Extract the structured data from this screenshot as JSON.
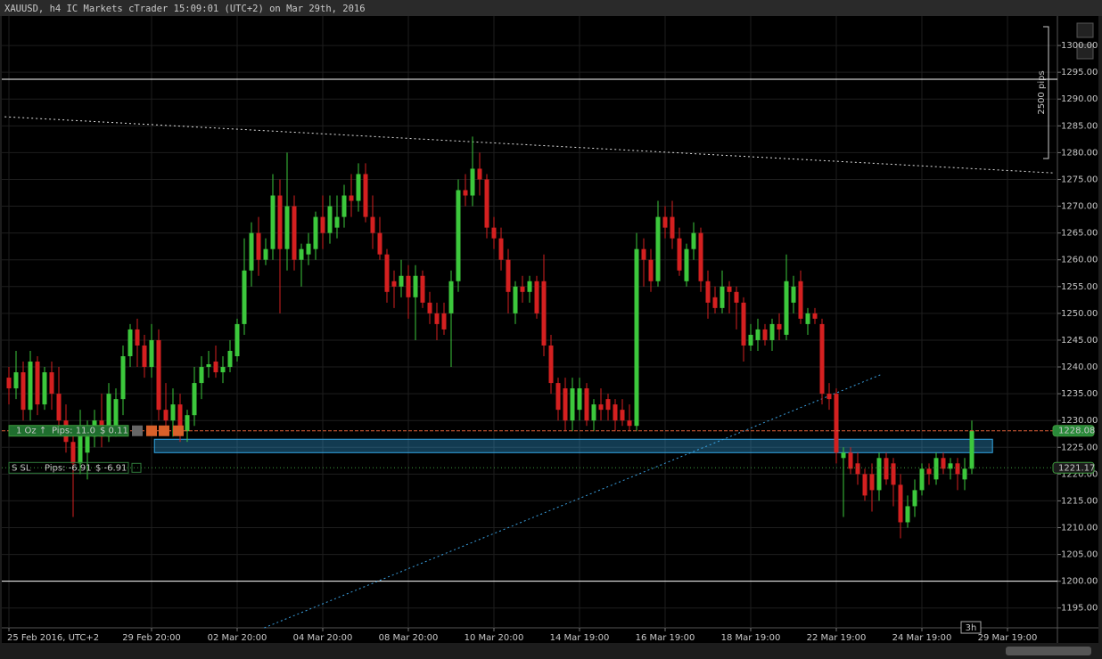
{
  "chart_data": {
    "type": "candlestick",
    "title": "XAUUSD, h4 IC Markets cTrader 15:09:01 (UTC+2) on Mar 29th, 2016",
    "xlim": [
      -1,
      147
    ],
    "xticks": [
      {
        "value": 0,
        "label": "25 Feb 2016, UTC+2"
      },
      {
        "value": 20,
        "label": "29 Feb 20:00"
      },
      {
        "value": 32,
        "label": "02 Mar 20:00"
      },
      {
        "value": 44,
        "label": "04 Mar 20:00"
      },
      {
        "value": 56,
        "label": "08 Mar 20:00"
      },
      {
        "value": 68,
        "label": "10 Mar 20:00"
      },
      {
        "value": 80,
        "label": "14 Mar 19:00"
      },
      {
        "value": 92,
        "label": "16 Mar 19:00"
      },
      {
        "value": 104,
        "label": "18 Mar 19:00"
      },
      {
        "value": 116,
        "label": "22 Mar 19:00"
      },
      {
        "value": 128,
        "label": "24 Mar 19:00"
      },
      {
        "value": 140,
        "label": "29 Mar 19:00"
      }
    ],
    "ylim": [
      1191.3,
      1305.5
    ],
    "yticks": [
      {
        "value": 1195,
        "label": "1195.00"
      },
      {
        "value": 1200,
        "label": "1200.00"
      },
      {
        "value": 1205,
        "label": "1205.00"
      },
      {
        "value": 1210,
        "label": "1210.00"
      },
      {
        "value": 1215,
        "label": "1215.00"
      },
      {
        "value": 1220,
        "label": "1220.00"
      },
      {
        "value": 1225,
        "label": "1225.00"
      },
      {
        "value": 1230,
        "label": "1230.00"
      },
      {
        "value": 1235,
        "label": "1235.00"
      },
      {
        "value": 1240,
        "label": "1240.00"
      },
      {
        "value": 1245,
        "label": "1245.00"
      },
      {
        "value": 1250,
        "label": "1250.00"
      },
      {
        "value": 1255,
        "label": "1255.00"
      },
      {
        "value": 1260,
        "label": "1260.00"
      },
      {
        "value": 1265,
        "label": "1265.00"
      },
      {
        "value": 1270,
        "label": "1270.00"
      },
      {
        "value": 1275,
        "label": "1275.00"
      },
      {
        "value": 1280,
        "label": "1280.00"
      },
      {
        "value": 1285,
        "label": "1285.00"
      },
      {
        "value": 1290,
        "label": "1290.00"
      },
      {
        "value": 1295,
        "label": "1295.00"
      },
      {
        "value": 1300,
        "label": "1300.00"
      }
    ],
    "grid": true,
    "up_color": "#3cc83c",
    "down_color": "#d42020",
    "open": [
      1238,
      1236,
      1239,
      1232,
      1241,
      1233,
      1239,
      1235,
      1230,
      1226,
      1222,
      1224,
      1227,
      1230,
      1227,
      1229,
      1234,
      1242,
      1247,
      1244,
      1240,
      1245,
      1232,
      1230,
      1233,
      1228,
      1231,
      1237,
      1240,
      1241,
      1239,
      1240,
      1242,
      1248,
      1258,
      1265,
      1260,
      1262,
      1272,
      1262,
      1270,
      1260,
      1261,
      1262,
      1268,
      1265,
      1266,
      1268,
      1272,
      1271,
      1276,
      1268,
      1265,
      1261,
      1256,
      1255,
      1257,
      1253,
      1257,
      1252,
      1250,
      1250,
      1250,
      1256,
      1273,
      1272,
      1277,
      1275,
      1266,
      1264,
      1260,
      1250,
      1255,
      1254,
      1256,
      1256,
      1244,
      1237,
      1236,
      1230,
      1232,
      1236,
      1230,
      1233,
      1234,
      1233,
      1232,
      1230,
      1229,
      1262,
      1260,
      1256,
      1268,
      1268,
      1264,
      1256,
      1262,
      1265,
      1256,
      1253,
      1251,
      1255,
      1254,
      1252,
      1244,
      1245,
      1247,
      1245,
      1248,
      1246,
      1252,
      1256,
      1248,
      1250,
      1248,
      1235,
      1235,
      1223,
      1224,
      1222,
      1220,
      1220,
      1217,
      1223,
      1222,
      1218,
      1211,
      1214,
      1217,
      1221,
      1219,
      1223,
      1221,
      1222,
      1219,
      1221
    ],
    "high": [
      1240,
      1243,
      1241,
      1243,
      1242,
      1240,
      1241,
      1240,
      1233,
      1228,
      1232,
      1230,
      1232,
      1235,
      1237,
      1236,
      1244,
      1248,
      1249,
      1246,
      1248,
      1247,
      1237,
      1236,
      1235,
      1232,
      1240,
      1242,
      1243,
      1244,
      1242,
      1245,
      1249,
      1264,
      1267,
      1268,
      1264,
      1276,
      1275,
      1280,
      1272,
      1263,
      1265,
      1269,
      1272,
      1272,
      1272,
      1274,
      1276,
      1278,
      1278,
      1272,
      1268,
      1262,
      1258,
      1260,
      1259,
      1259,
      1258,
      1254,
      1252,
      1252,
      1258,
      1275,
      1276,
      1283,
      1280,
      1276,
      1268,
      1266,
      1262,
      1256,
      1257,
      1257,
      1257,
      1261,
      1246,
      1238,
      1238,
      1238,
      1238,
      1237,
      1234,
      1236,
      1235,
      1234,
      1234,
      1233,
      1265,
      1264,
      1262,
      1271,
      1270,
      1271,
      1266,
      1263,
      1267,
      1266,
      1258,
      1255,
      1258,
      1256,
      1255,
      1253,
      1248,
      1249,
      1248,
      1249,
      1250,
      1261,
      1257,
      1258,
      1251,
      1251,
      1249,
      1237,
      1236,
      1225,
      1225,
      1224,
      1221,
      1222,
      1224,
      1224,
      1223,
      1220,
      1216,
      1219,
      1222,
      1222,
      1224,
      1224,
      1223,
      1223,
      1223,
      1230
    ],
    "low": [
      1233,
      1234,
      1230,
      1230,
      1231,
      1232,
      1232,
      1228,
      1224,
      1212,
      1220,
      1219,
      1225,
      1225,
      1226,
      1227,
      1231,
      1240,
      1240,
      1238,
      1238,
      1230,
      1228,
      1227,
      1226,
      1226,
      1229,
      1234,
      1238,
      1238,
      1237,
      1239,
      1241,
      1246,
      1255,
      1257,
      1259,
      1260,
      1250,
      1258,
      1258,
      1255,
      1259,
      1260,
      1262,
      1263,
      1264,
      1266,
      1268,
      1269,
      1267,
      1262,
      1260,
      1252,
      1251,
      1253,
      1249,
      1245,
      1251,
      1248,
      1245,
      1246,
      1240,
      1254,
      1270,
      1270,
      1272,
      1264,
      1262,
      1258,
      1250,
      1248,
      1252,
      1252,
      1249,
      1242,
      1235,
      1230,
      1228,
      1228,
      1230,
      1229,
      1228,
      1230,
      1230,
      1228,
      1229,
      1228,
      1228,
      1255,
      1254,
      1255,
      1264,
      1262,
      1257,
      1255,
      1260,
      1254,
      1249,
      1250,
      1250,
      1250,
      1247,
      1241,
      1243,
      1243,
      1244,
      1243,
      1245,
      1245,
      1250,
      1248,
      1246,
      1248,
      1233,
      1232,
      1222,
      1212,
      1220,
      1218,
      1215,
      1213,
      1215,
      1218,
      1214,
      1208,
      1210,
      1212,
      1216,
      1218,
      1218,
      1220,
      1219,
      1217,
      1217,
      1220
    ],
    "close": [
      1236,
      1239,
      1232,
      1241,
      1233,
      1239,
      1235,
      1230,
      1226,
      1222,
      1228,
      1227,
      1230,
      1227,
      1235,
      1234,
      1242,
      1247,
      1244,
      1240,
      1245,
      1232,
      1230,
      1233,
      1228,
      1231,
      1237,
      1240,
      1240.5,
      1239,
      1240,
      1243,
      1248,
      1258,
      1265,
      1260,
      1262,
      1272,
      1262,
      1270,
      1260,
      1262,
      1263,
      1268,
      1265,
      1270,
      1268,
      1272,
      1271,
      1276,
      1268,
      1265,
      1261,
      1254,
      1255,
      1257,
      1253,
      1257,
      1252,
      1250,
      1248,
      1247,
      1256,
      1273,
      1272,
      1277,
      1275,
      1266,
      1264,
      1260,
      1254,
      1255,
      1254,
      1256,
      1250,
      1244,
      1237,
      1232,
      1230,
      1236,
      1236,
      1230,
      1233,
      1232,
      1232,
      1230,
      1230,
      1229,
      1262,
      1260,
      1256,
      1268,
      1266,
      1264,
      1258,
      1262,
      1265,
      1256,
      1252,
      1251,
      1255,
      1254,
      1252,
      1244,
      1246,
      1247,
      1245,
      1248,
      1247,
      1256,
      1255,
      1249,
      1250,
      1249,
      1235,
      1234,
      1224,
      1224,
      1221,
      1220,
      1216,
      1217,
      1223,
      1219,
      1218,
      1211,
      1214,
      1217,
      1221,
      1220,
      1223,
      1221,
      1222,
      1220,
      1221,
      1228.08
    ],
    "horizontal_lines": [
      {
        "value": 1293.7,
        "color": "#ffffff"
      },
      {
        "value": 1200,
        "color": "#ffffff"
      }
    ],
    "price_lines": [
      {
        "value": 1228.08,
        "color": "#e0603a",
        "label_color": "#2a8a3a"
      },
      {
        "value": 1221.17,
        "color": "#3c9a3c",
        "label_color": "#1c1c1c"
      }
    ],
    "zone": {
      "x": [
        20.4,
        137.9
      ],
      "y": [
        1224,
        1226.5
      ],
      "color": "#33a9e8"
    },
    "trend_lines": [
      {
        "x": [
          -0.6,
          146.6
        ],
        "y": [
          1286.7,
          1276.2
        ],
        "color": "#dddddd"
      },
      {
        "x": [
          35.8,
          122.5
        ],
        "y": [
          1191.3,
          1238.7
        ],
        "color": "#3aa0e0"
      }
    ],
    "ruler_label": "2500 pips",
    "timeframe_label": "3h",
    "position": {
      "quantity": "1 Oz ↑",
      "pips": "Pips: 11.0",
      "amount": "$ 0.11"
    },
    "stop_loss": {
      "label": "S SL",
      "pips": "Pips: -6.91",
      "amount": "$ -6.91"
    }
  }
}
